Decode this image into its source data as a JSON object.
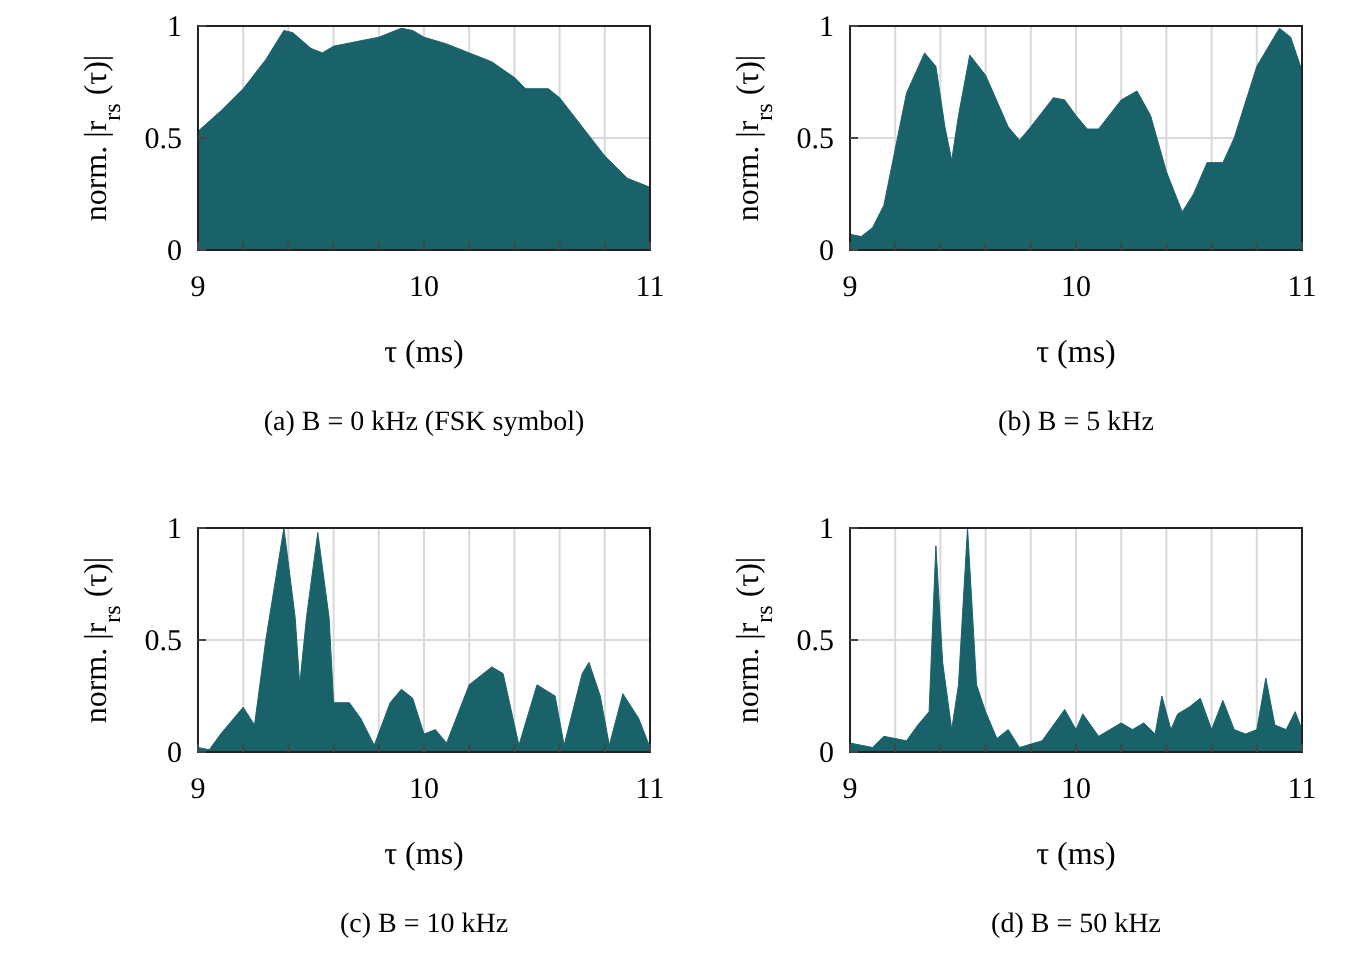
{
  "chart_data": [
    {
      "type": "area",
      "title": "(a) B = 0 kHz (FSK symbol)",
      "xlabel": "τ (ms)",
      "ylabel": "norm. |r$_{rs}$ (τ)|",
      "xlim": [
        9,
        11
      ],
      "ylim": [
        0,
        1
      ],
      "xticks": [
        9,
        {
          "value": 9.2,
          "label": null
        },
        {
          "value": 9.4,
          "label": null
        },
        {
          "value": 9.6,
          "label": null
        },
        {
          "value": 9.8,
          "label": null
        },
        10,
        {
          "value": 10.2,
          "label": null
        },
        {
          "value": 10.4,
          "label": null
        },
        {
          "value": 10.6,
          "label": null
        },
        {
          "value": 10.8,
          "label": null
        },
        11
      ],
      "yticks": [
        0,
        0.5,
        1
      ],
      "grid": true,
      "series": [
        {
          "color": "#1a6269",
          "x": [
            9.0,
            9.1,
            9.2,
            9.3,
            9.38,
            9.42,
            9.5,
            9.55,
            9.6,
            9.7,
            9.8,
            9.9,
            9.95,
            10.0,
            10.1,
            10.2,
            10.3,
            10.4,
            10.45,
            10.55,
            10.6,
            10.7,
            10.8,
            10.9,
            11.0
          ],
          "values": [
            0.53,
            0.62,
            0.72,
            0.85,
            0.98,
            0.97,
            0.9,
            0.88,
            0.91,
            0.93,
            0.95,
            0.99,
            0.98,
            0.95,
            0.92,
            0.88,
            0.84,
            0.77,
            0.72,
            0.72,
            0.68,
            0.55,
            0.42,
            0.32,
            0.28
          ]
        }
      ]
    },
    {
      "type": "area",
      "title": "(b) B = 5 kHz",
      "xlabel": "τ (ms)",
      "ylabel": "norm. |r$_{rs}$ (τ)|",
      "xlim": [
        9,
        11
      ],
      "ylim": [
        0,
        1
      ],
      "xticks": [
        9,
        {
          "value": 9.2,
          "label": null
        },
        {
          "value": 9.4,
          "label": null
        },
        {
          "value": 9.6,
          "label": null
        },
        {
          "value": 9.8,
          "label": null
        },
        10,
        {
          "value": 10.2,
          "label": null
        },
        {
          "value": 10.4,
          "label": null
        },
        {
          "value": 10.6,
          "label": null
        },
        {
          "value": 10.8,
          "label": null
        },
        11
      ],
      "yticks": [
        0,
        0.5,
        1
      ],
      "grid": true,
      "series": [
        {
          "color": "#1a6269",
          "x": [
            9.0,
            9.05,
            9.1,
            9.15,
            9.2,
            9.25,
            9.33,
            9.38,
            9.42,
            9.45,
            9.48,
            9.53,
            9.6,
            9.7,
            9.75,
            9.8,
            9.9,
            9.95,
            10.0,
            10.05,
            10.1,
            10.2,
            10.27,
            10.33,
            10.4,
            10.47,
            10.52,
            10.58,
            10.65,
            10.7,
            10.8,
            10.9,
            10.95,
            11.0
          ],
          "values": [
            0.07,
            0.06,
            0.1,
            0.2,
            0.45,
            0.7,
            0.88,
            0.82,
            0.55,
            0.4,
            0.6,
            0.87,
            0.78,
            0.55,
            0.49,
            0.55,
            0.68,
            0.67,
            0.6,
            0.54,
            0.54,
            0.67,
            0.71,
            0.6,
            0.35,
            0.17,
            0.25,
            0.39,
            0.39,
            0.5,
            0.82,
            0.99,
            0.95,
            0.8
          ]
        }
      ]
    },
    {
      "type": "area",
      "title": "(c) B = 10 kHz",
      "xlabel": "τ (ms)",
      "ylabel": "norm. |r$_{rs}$ (τ)|",
      "xlim": [
        9,
        11
      ],
      "ylim": [
        0,
        1
      ],
      "xticks": [
        9,
        {
          "value": 9.2,
          "label": null
        },
        {
          "value": 9.4,
          "label": null
        },
        {
          "value": 9.6,
          "label": null
        },
        {
          "value": 9.8,
          "label": null
        },
        10,
        {
          "value": 10.2,
          "label": null
        },
        {
          "value": 10.4,
          "label": null
        },
        {
          "value": 10.6,
          "label": null
        },
        {
          "value": 10.8,
          "label": null
        },
        11
      ],
      "yticks": [
        0,
        0.5,
        1
      ],
      "grid": true,
      "series": [
        {
          "color": "#1a6269",
          "x": [
            9.0,
            9.05,
            9.1,
            9.2,
            9.25,
            9.3,
            9.38,
            9.43,
            9.45,
            9.48,
            9.53,
            9.58,
            9.6,
            9.67,
            9.72,
            9.78,
            9.85,
            9.9,
            9.95,
            10.0,
            10.05,
            10.1,
            10.2,
            10.3,
            10.35,
            10.42,
            10.5,
            10.58,
            10.62,
            10.7,
            10.73,
            10.78,
            10.82,
            10.88,
            10.95,
            11.0
          ],
          "values": [
            0.02,
            0.01,
            0.08,
            0.2,
            0.12,
            0.5,
            1.0,
            0.6,
            0.3,
            0.6,
            0.98,
            0.6,
            0.22,
            0.22,
            0.15,
            0.03,
            0.22,
            0.28,
            0.24,
            0.08,
            0.1,
            0.04,
            0.3,
            0.38,
            0.35,
            0.03,
            0.3,
            0.25,
            0.03,
            0.35,
            0.4,
            0.25,
            0.03,
            0.26,
            0.15,
            0.02
          ]
        }
      ]
    },
    {
      "type": "area",
      "title": "(d) B = 50 kHz",
      "xlabel": "τ (ms)",
      "ylabel": "norm. |r$_{rs}$ (τ)|",
      "xlim": [
        9,
        11
      ],
      "ylim": [
        0,
        1
      ],
      "xticks": [
        9,
        {
          "value": 9.2,
          "label": null
        },
        {
          "value": 9.4,
          "label": null
        },
        {
          "value": 9.6,
          "label": null
        },
        {
          "value": 9.8,
          "label": null
        },
        10,
        {
          "value": 10.2,
          "label": null
        },
        {
          "value": 10.4,
          "label": null
        },
        {
          "value": 10.6,
          "label": null
        },
        {
          "value": 10.8,
          "label": null
        },
        11
      ],
      "yticks": [
        0,
        0.5,
        1
      ],
      "grid": true,
      "series": [
        {
          "color": "#1a6269",
          "x": [
            9.0,
            9.1,
            9.15,
            9.25,
            9.3,
            9.35,
            9.38,
            9.41,
            9.45,
            9.48,
            9.52,
            9.56,
            9.6,
            9.65,
            9.7,
            9.75,
            9.85,
            9.9,
            9.95,
            10.0,
            10.03,
            10.1,
            10.2,
            10.25,
            10.3,
            10.35,
            10.38,
            10.42,
            10.45,
            10.5,
            10.55,
            10.6,
            10.65,
            10.7,
            10.75,
            10.8,
            10.84,
            10.88,
            10.93,
            10.97,
            11.0
          ],
          "values": [
            0.04,
            0.02,
            0.07,
            0.05,
            0.12,
            0.18,
            0.92,
            0.4,
            0.1,
            0.3,
            1.0,
            0.3,
            0.18,
            0.06,
            0.1,
            0.02,
            0.05,
            0.12,
            0.19,
            0.1,
            0.17,
            0.07,
            0.13,
            0.1,
            0.13,
            0.08,
            0.25,
            0.1,
            0.17,
            0.2,
            0.24,
            0.1,
            0.23,
            0.1,
            0.08,
            0.1,
            0.33,
            0.12,
            0.1,
            0.18,
            0.1
          ]
        }
      ]
    }
  ]
}
